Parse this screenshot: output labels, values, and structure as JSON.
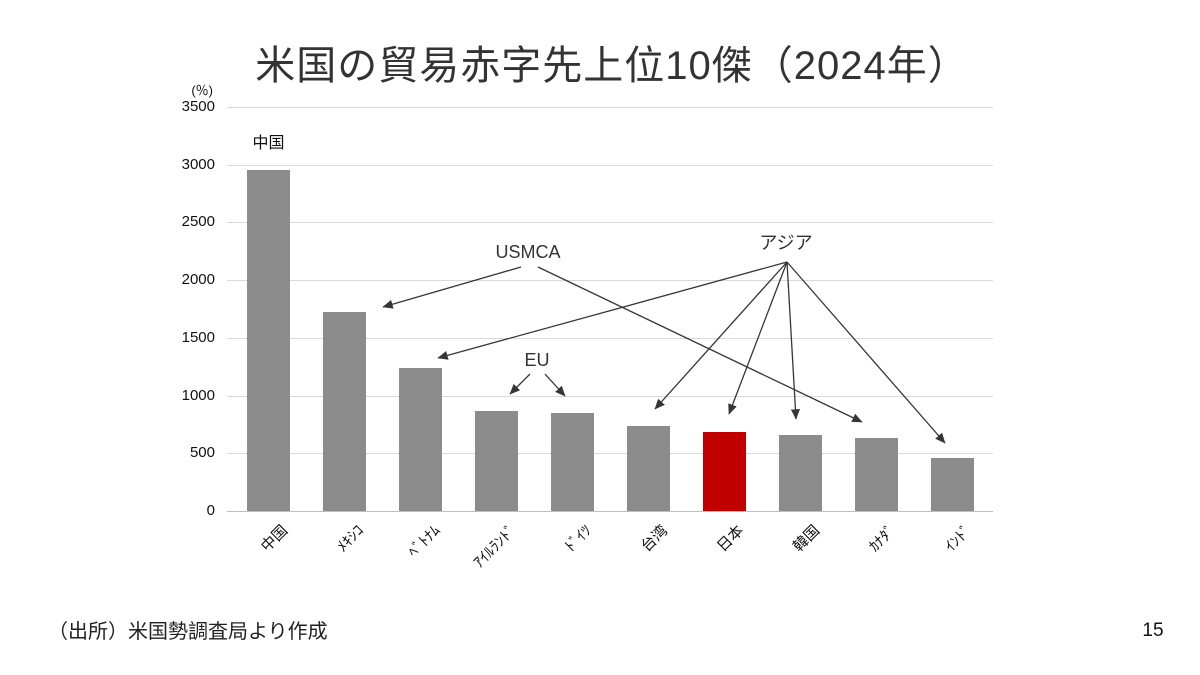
{
  "slide": {
    "title": "米国の貿易赤字先上位10傑（2024年）",
    "source_note": "（出所）米国勢調査局より作成",
    "page_number": "15"
  },
  "chart_data": {
    "type": "bar",
    "title": "米国の貿易赤字先上位10傑（2024年）",
    "unit_label": "(％)",
    "categories": [
      "中国",
      "ﾒｷｼｺ",
      "ﾍﾞﾄﾅﾑ",
      "ｱｲﾙﾗﾝﾄﾞ",
      "ﾄﾞｲﾂ",
      "台湾",
      "日本",
      "韓国",
      "ｶﾅﾀﾞ",
      "ｲﾝﾄﾞ"
    ],
    "values": [
      2950,
      1720,
      1235,
      870,
      850,
      740,
      685,
      660,
      635,
      460
    ],
    "ylim": [
      0,
      3500
    ],
    "yticks": [
      0,
      500,
      1000,
      1500,
      2000,
      2500,
      3000,
      3500
    ],
    "grid": true,
    "legend": "none",
    "highlight_index": 6,
    "colors": {
      "bar_default": "#8c8c8c",
      "bar_highlight": "#c00000",
      "gridline": "#d9d9d9",
      "arrow": "#363636"
    },
    "bar_top_label": {
      "index": 0,
      "text": "中国"
    },
    "annotations": [
      {
        "id": "usmca",
        "label": "USMCA",
        "targets": [
          {
            "id": "mexico",
            "category": "ﾒｷｼｺ"
          },
          {
            "id": "canada",
            "category": "ｶﾅﾀﾞ"
          }
        ]
      },
      {
        "id": "eu",
        "label": "EU",
        "targets": [
          {
            "id": "ireland",
            "category": "ｱｲﾙﾗﾝﾄﾞ"
          },
          {
            "id": "germany",
            "category": "ﾄﾞｲﾂ"
          }
        ]
      },
      {
        "id": "asia",
        "label": "アジア",
        "targets": [
          {
            "id": "vietnam",
            "category": "ﾍﾞﾄﾅﾑ"
          },
          {
            "id": "taiwan",
            "category": "台湾"
          },
          {
            "id": "japan",
            "category": "日本"
          },
          {
            "id": "korea",
            "category": "韓国"
          },
          {
            "id": "india",
            "category": "ｲﾝﾄﾞ"
          }
        ]
      }
    ]
  }
}
